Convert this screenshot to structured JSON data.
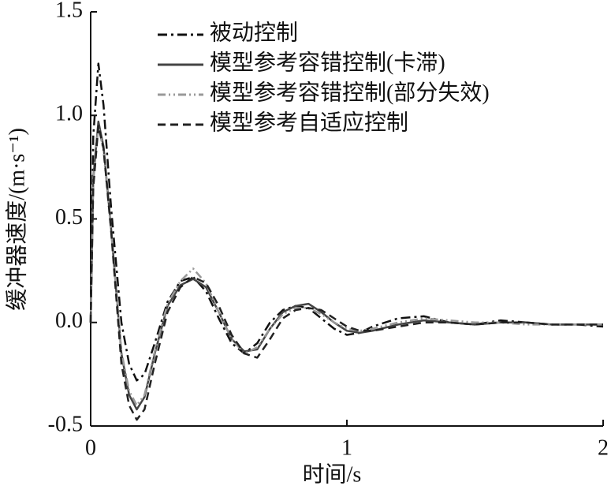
{
  "chart_data": {
    "type": "line",
    "xlabel": "时间/s",
    "ylabel": "缓冲器速度/(m·s⁻¹)",
    "x": [
      0,
      0.01,
      0.03,
      0.05,
      0.08,
      0.12,
      0.15,
      0.18,
      0.21,
      0.25,
      0.3,
      0.35,
      0.4,
      0.45,
      0.5,
      0.55,
      0.6,
      0.65,
      0.7,
      0.75,
      0.8,
      0.85,
      0.9,
      0.95,
      1.0,
      1.05,
      1.1,
      1.2,
      1.3,
      1.4,
      1.5,
      1.6,
      1.7,
      1.8,
      1.9,
      2.0
    ],
    "series": [
      {
        "name": "被动控制",
        "color": "#111111",
        "dash": "12 5 3 5",
        "values": [
          0,
          0.9,
          1.25,
          1.05,
          0.55,
          0.0,
          -0.2,
          -0.28,
          -0.25,
          -0.1,
          0.1,
          0.2,
          0.22,
          0.15,
          0.02,
          -0.1,
          -0.15,
          -0.1,
          0.0,
          0.06,
          0.08,
          0.07,
          0.02,
          -0.03,
          -0.06,
          -0.05,
          -0.02,
          0.02,
          0.03,
          0.0,
          -0.01,
          0.01,
          0.0,
          -0.01,
          -0.01,
          -0.02
        ]
      },
      {
        "name": "模型参考容错控制(卡滞)",
        "color": "#444444",
        "dash": "none",
        "values": [
          0,
          0.7,
          0.97,
          0.85,
          0.45,
          -0.15,
          -0.35,
          -0.42,
          -0.36,
          -0.15,
          0.08,
          0.18,
          0.21,
          0.17,
          0.05,
          -0.08,
          -0.14,
          -0.13,
          -0.03,
          0.05,
          0.08,
          0.09,
          0.05,
          0.0,
          -0.04,
          -0.05,
          -0.04,
          -0.01,
          0.01,
          0.0,
          -0.01,
          0.0,
          0.0,
          -0.01,
          -0.01,
          -0.01
        ]
      },
      {
        "name": "模型参考容错控制(部分失效)",
        "color": "#999999",
        "dash": "10 4 2 4 2 4",
        "values": [
          0,
          0.68,
          0.95,
          0.83,
          0.44,
          -0.14,
          -0.33,
          -0.4,
          -0.35,
          -0.14,
          0.09,
          0.2,
          0.26,
          0.19,
          0.05,
          -0.08,
          -0.15,
          -0.12,
          -0.03,
          0.04,
          0.07,
          0.07,
          0.04,
          0.0,
          -0.03,
          -0.04,
          -0.03,
          0.0,
          0.02,
          0.01,
          0.0,
          0.0,
          -0.01,
          -0.01,
          -0.01,
          -0.01
        ]
      },
      {
        "name": "模型参考自适应控制",
        "color": "#222222",
        "dash": "10 6",
        "values": [
          0,
          0.65,
          0.95,
          0.84,
          0.44,
          -0.2,
          -0.4,
          -0.47,
          -0.42,
          -0.2,
          0.05,
          0.17,
          0.22,
          0.19,
          0.08,
          -0.06,
          -0.15,
          -0.17,
          -0.08,
          0.02,
          0.06,
          0.07,
          0.06,
          0.02,
          -0.02,
          -0.04,
          -0.04,
          -0.02,
          0.0,
          0.0,
          -0.01,
          0.0,
          0.0,
          -0.01,
          -0.01,
          -0.01
        ]
      }
    ],
    "xlim": [
      0,
      2
    ],
    "xticks": [
      0,
      1,
      2
    ],
    "ylim": [
      -0.5,
      1.5
    ],
    "yticks": [
      {
        "value": -0.5,
        "label": "-0.5"
      },
      {
        "value": 0,
        "label": "0.0"
      },
      {
        "value": 0.5,
        "label": "0.5"
      },
      {
        "value": 1.0,
        "label": "1.0"
      },
      {
        "value": 1.5,
        "label": "1.5"
      }
    ],
    "legend": "upper-center"
  }
}
